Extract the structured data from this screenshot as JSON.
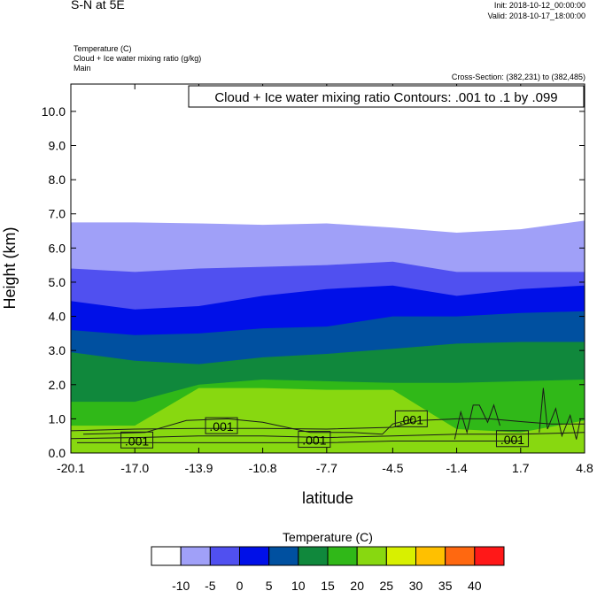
{
  "header": {
    "title": "S-N at 5E",
    "init": "Init: 2018-10-12_00:00:00",
    "valid": "Valid: 2018-10-17_18:00:00",
    "field1": "Temperature   (C)",
    "field2": "Cloud + Ice water mixing ratio   (g/kg)",
    "field3": "Main",
    "cross_section": "Cross-Section: (382,231) to (382,485)"
  },
  "chart_data": {
    "type": "heatmap",
    "title": "S-N at 5E",
    "annotation": "Cloud + Ice water mixing ratio Contours: .001 to .1 by .099",
    "xlabel": "latitude",
    "ylabel": "Height (km)",
    "xlim": [
      -20.1,
      4.8
    ],
    "ylim": [
      0.0,
      10.8
    ],
    "x_ticks": [
      "-20.1",
      "-17.0",
      "-13.9",
      "-10.8",
      "-7.7",
      "-4.5",
      "-1.4",
      "1.7",
      "4.8"
    ],
    "y_ticks": [
      "0.0",
      "1.0",
      "2.0",
      "3.0",
      "4.0",
      "5.0",
      "6.0",
      "7.0",
      "8.0",
      "9.0",
      "10.0"
    ],
    "colorbar": {
      "title": "Temperature  (C)",
      "labels": [
        "-10",
        "-5",
        "0",
        "5",
        "10",
        "15",
        "20",
        "25",
        "30",
        "35",
        "40"
      ],
      "colors": [
        "#ffffff",
        "#a0a0f8",
        "#5050f0",
        "#0010e8",
        "#0050a0",
        "#10883c",
        "#30b818",
        "#88d810",
        "#d8f000",
        "#ffc000",
        "#ff6810",
        "#ff1818"
      ]
    },
    "temperature_isotherms_km": [
      {
        "threshold": -10,
        "x": [
          -20.1,
          -17.0,
          -13.9,
          -10.8,
          -7.7,
          -4.5,
          -1.4,
          1.7,
          4.8
        ],
        "height": [
          6.75,
          6.75,
          6.72,
          6.68,
          6.72,
          6.6,
          6.45,
          6.55,
          6.8
        ]
      },
      {
        "threshold": -5,
        "x": [
          -20.1,
          -17.0,
          -13.9,
          -10.8,
          -7.7,
          -4.5,
          -1.4,
          1.7,
          4.8
        ],
        "height": [
          5.4,
          5.3,
          5.4,
          5.45,
          5.5,
          5.6,
          5.3,
          5.3,
          5.3
        ]
      },
      {
        "threshold": 0,
        "x": [
          -20.1,
          -17.0,
          -13.9,
          -10.8,
          -7.7,
          -4.5,
          -1.4,
          1.7,
          4.8
        ],
        "height": [
          4.45,
          4.2,
          4.3,
          4.6,
          4.8,
          4.9,
          4.6,
          4.8,
          4.9
        ]
      },
      {
        "threshold": 5,
        "x": [
          -20.1,
          -17.0,
          -13.9,
          -10.8,
          -7.7,
          -4.5,
          -1.4,
          1.7,
          4.8
        ],
        "height": [
          3.6,
          3.45,
          3.5,
          3.65,
          3.7,
          4.0,
          4.0,
          4.1,
          4.15
        ]
      },
      {
        "threshold": 10,
        "x": [
          -20.1,
          -17.0,
          -13.9,
          -10.8,
          -7.7,
          -4.5,
          -1.4,
          1.7,
          4.8
        ],
        "height": [
          2.95,
          2.7,
          2.6,
          2.8,
          2.9,
          3.05,
          3.2,
          3.25,
          3.25
        ]
      },
      {
        "threshold": 15,
        "x": [
          -20.1,
          -17.0,
          -13.9,
          -10.8,
          -7.7,
          -4.5,
          -1.4,
          1.7,
          4.8
        ],
        "height": [
          1.5,
          1.5,
          2.0,
          2.15,
          2.1,
          2.05,
          2.05,
          2.1,
          2.15
        ]
      },
      {
        "threshold": 20,
        "x": [
          -20.1,
          -17.0,
          -13.9,
          -10.8,
          -7.7,
          -4.5,
          -1.4,
          1.7,
          4.8
        ],
        "height": [
          0.8,
          0.8,
          1.9,
          1.9,
          1.85,
          1.85,
          0.7,
          0.6,
          0.95
        ]
      }
    ],
    "contour_labels": [
      {
        "text": ".001",
        "x": -16.9,
        "height": 0.38
      },
      {
        "text": ".001",
        "x": -12.8,
        "height": 0.8
      },
      {
        "text": ".001",
        "x": -8.3,
        "height": 0.4
      },
      {
        "text": ".001",
        "x": -3.6,
        "height": 1.0
      },
      {
        "text": ".001",
        "x": 1.3,
        "height": 0.42
      }
    ]
  }
}
